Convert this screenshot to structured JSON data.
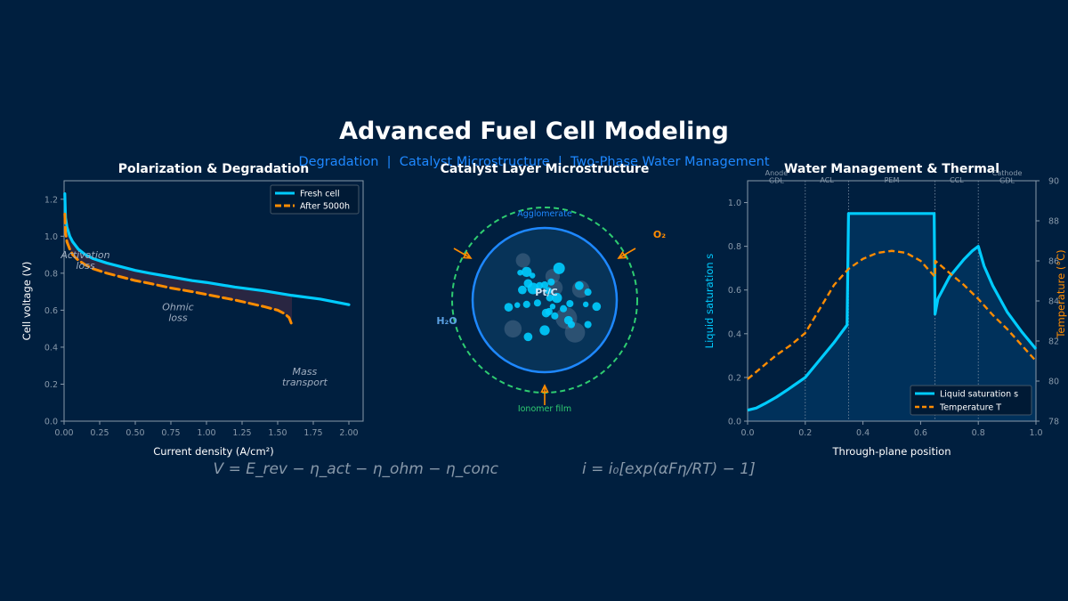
{
  "page": {
    "title": "Advanced Fuel Cell Modeling",
    "subtitle": "Degradation  |  Catalyst Microstructure  |  Two-Phase Water Management",
    "equation_left": "V = E_rev − η_act − η_ohm − η_conc",
    "equation_right": "i = i₀[exp(αFη/RT) − 1]"
  },
  "colors": {
    "background": "#001f3f",
    "axes_face": "#001f3f",
    "fresh": "#00ccff",
    "aged": "#ff8c00",
    "title": "#ffffff",
    "subtitle": "#1e88ff",
    "spine": "#8899aa",
    "annotation": "#a0aec0",
    "ionomer": "#2ecc71",
    "agglomerate": "#1e88ff",
    "fill": "#002b4f"
  },
  "chart_data": [
    {
      "id": "polarization",
      "type": "line",
      "title": "Polarization & Degradation",
      "xlabel": "Current density (A/cm²)",
      "ylabel": "Cell voltage (V)",
      "xlim": [
        0,
        2.1
      ],
      "ylim": [
        0,
        1.3
      ],
      "xticks": [
        "0.00",
        "0.25",
        "0.50",
        "0.75",
        "1.00",
        "1.25",
        "1.50",
        "1.75",
        "2.00"
      ],
      "yticks": [
        "0.0",
        "0.2",
        "0.4",
        "0.6",
        "0.8",
        "1.0",
        "1.2"
      ],
      "legend": {
        "position": "top-right",
        "entries": [
          "Fresh cell",
          "After 5000h"
        ]
      },
      "series": [
        {
          "name": "Fresh cell",
          "style": "solid",
          "x": [
            0.005,
            0.01,
            0.02,
            0.04,
            0.06,
            0.1,
            0.15,
            0.2,
            0.3,
            0.4,
            0.5,
            0.6,
            0.75,
            0.9,
            1.0,
            1.2,
            1.4,
            1.6,
            1.8,
            1.9,
            2.0
          ],
          "y": [
            1.23,
            1.1,
            1.05,
            1.0,
            0.97,
            0.93,
            0.9,
            0.88,
            0.855,
            0.835,
            0.815,
            0.8,
            0.78,
            0.76,
            0.75,
            0.725,
            0.705,
            0.68,
            0.66,
            0.645,
            0.63
          ]
        },
        {
          "name": "After 5000h",
          "style": "dashed",
          "x": [
            0.005,
            0.01,
            0.02,
            0.04,
            0.06,
            0.1,
            0.15,
            0.2,
            0.3,
            0.4,
            0.5,
            0.6,
            0.75,
            0.9,
            1.0,
            1.2,
            1.4,
            1.5,
            1.55,
            1.58,
            1.6
          ],
          "y": [
            1.12,
            1.02,
            0.97,
            0.93,
            0.9,
            0.87,
            0.845,
            0.825,
            0.8,
            0.78,
            0.76,
            0.745,
            0.72,
            0.7,
            0.685,
            0.655,
            0.62,
            0.6,
            0.58,
            0.56,
            0.52
          ]
        }
      ],
      "annotations": [
        {
          "text": "Activation\nloss",
          "x": 0.15,
          "y": 0.88
        },
        {
          "text": "Ohmic\nloss",
          "x": 0.8,
          "y": 0.6
        },
        {
          "text": "Mass\ntransport",
          "x": 1.69,
          "y": 0.25
        }
      ]
    },
    {
      "id": "catalyst",
      "type": "diagram",
      "title": "Catalyst Layer Microstructure",
      "labels": {
        "agglomerate": "Agglomerate",
        "o2": "O₂",
        "h2o": "H₂O",
        "center": "Pt/C",
        "ionomer": "Ionomer film"
      },
      "particles": [
        [
          0.14,
          0.17,
          0.11
        ],
        [
          -0.16,
          0.16,
          0.08
        ],
        [
          0.5,
          0.15,
          0.12
        ],
        [
          0.3,
          -0.25,
          0.15
        ],
        [
          -0.44,
          -0.4,
          0.12
        ],
        [
          -0.3,
          0.55,
          0.1
        ],
        [
          0.11,
          0.33,
          0.1
        ],
        [
          0.42,
          -0.45,
          0.14
        ],
        [
          0.2,
          0.44,
          0.08
        ],
        [
          -0.25,
          0.39,
          0.07
        ],
        [
          0.02,
          -0.18,
          0.06
        ],
        [
          0.17,
          0.03,
          0.07
        ],
        [
          0.0,
          -0.42,
          0.07
        ],
        [
          -0.07,
          0.2,
          0.05
        ],
        [
          0.6,
          0.11,
          0.05
        ],
        [
          0.05,
          0.13,
          0.05
        ],
        [
          -0.25,
          -0.06,
          0.05
        ],
        [
          -0.5,
          -0.1,
          0.06
        ],
        [
          -0.31,
          0.14,
          0.06
        ],
        [
          0.48,
          0.2,
          0.06
        ],
        [
          0.07,
          0.03,
          0.05
        ],
        [
          0.11,
          -0.09,
          0.04
        ],
        [
          0.35,
          -0.05,
          0.05
        ],
        [
          0.57,
          -0.06,
          0.04
        ],
        [
          -0.38,
          -0.07,
          0.04
        ],
        [
          -0.23,
          0.23,
          0.06
        ],
        [
          -0.1,
          -0.04,
          0.05
        ],
        [
          0.37,
          -0.34,
          0.05
        ],
        [
          0.0,
          0.21,
          0.05
        ],
        [
          0.72,
          -0.09,
          0.06
        ],
        [
          -0.23,
          -0.51,
          0.06
        ],
        [
          0.09,
          0.25,
          0.05
        ],
        [
          0.33,
          -0.28,
          0.06
        ],
        [
          0.26,
          -0.12,
          0.05
        ],
        [
          0.06,
          -0.16,
          0.05
        ],
        [
          0.6,
          -0.34,
          0.05
        ],
        [
          0.14,
          -0.22,
          0.05
        ],
        [
          -0.34,
          0.38,
          0.04
        ],
        [
          -0.17,
          0.34,
          0.04
        ]
      ]
    },
    {
      "id": "water",
      "type": "line",
      "title": "Water Management & Thermal",
      "xlabel": "Through-plane position",
      "ylabel": "Liquid saturation s",
      "y2label": "Temperature (°C)",
      "xlim": [
        0,
        1
      ],
      "ylim": [
        0,
        1.1
      ],
      "y2lim": [
        78,
        90
      ],
      "xticks": [
        "0.0",
        "0.2",
        "0.4",
        "0.6",
        "0.8",
        "1.0"
      ],
      "yticks": [
        "0.0",
        "0.2",
        "0.4",
        "0.6",
        "0.8",
        "1.0"
      ],
      "y2ticks": [
        "78",
        "80",
        "82",
        "84",
        "86",
        "88",
        "90"
      ],
      "regions": [
        {
          "label": "Anode\nGDL",
          "start": 0.0,
          "end": 0.2
        },
        {
          "label": "ACL",
          "start": 0.2,
          "end": 0.35
        },
        {
          "label": "PEM",
          "start": 0.35,
          "end": 0.65
        },
        {
          "label": "CCL",
          "start": 0.65,
          "end": 0.8
        },
        {
          "label": "Cathode\nGDL",
          "start": 0.8,
          "end": 1.0
        }
      ],
      "legend": {
        "position": "bottom-right",
        "entries": [
          "Liquid saturation s",
          "Temperature T"
        ]
      },
      "series": [
        {
          "name": "Liquid saturation s",
          "axis": "left",
          "style": "solid",
          "x": [
            0.0,
            0.03,
            0.06,
            0.1,
            0.14,
            0.2,
            0.25,
            0.3,
            0.345,
            0.35,
            0.4,
            0.5,
            0.6,
            0.647,
            0.65,
            0.66,
            0.7,
            0.75,
            0.78,
            0.8,
            0.82,
            0.85,
            0.9,
            0.95,
            1.0
          ],
          "y": [
            0.05,
            0.06,
            0.08,
            0.11,
            0.145,
            0.2,
            0.28,
            0.36,
            0.44,
            0.95,
            0.95,
            0.95,
            0.95,
            0.95,
            0.49,
            0.56,
            0.66,
            0.74,
            0.78,
            0.8,
            0.71,
            0.62,
            0.5,
            0.41,
            0.33
          ]
        },
        {
          "name": "Temperature T",
          "axis": "right",
          "style": "dashed",
          "x": [
            0.0,
            0.05,
            0.1,
            0.15,
            0.2,
            0.25,
            0.3,
            0.35,
            0.4,
            0.45,
            0.5,
            0.55,
            0.6,
            0.65,
            0.651,
            0.7,
            0.75,
            0.8,
            0.85,
            0.9,
            0.95,
            1.0
          ],
          "y": [
            80.1,
            80.7,
            81.3,
            81.8,
            82.4,
            83.6,
            84.8,
            85.6,
            86.1,
            86.4,
            86.5,
            86.4,
            86.0,
            85.2,
            86.0,
            85.4,
            84.8,
            84.1,
            83.3,
            82.6,
            81.8,
            81.0
          ]
        }
      ]
    }
  ]
}
